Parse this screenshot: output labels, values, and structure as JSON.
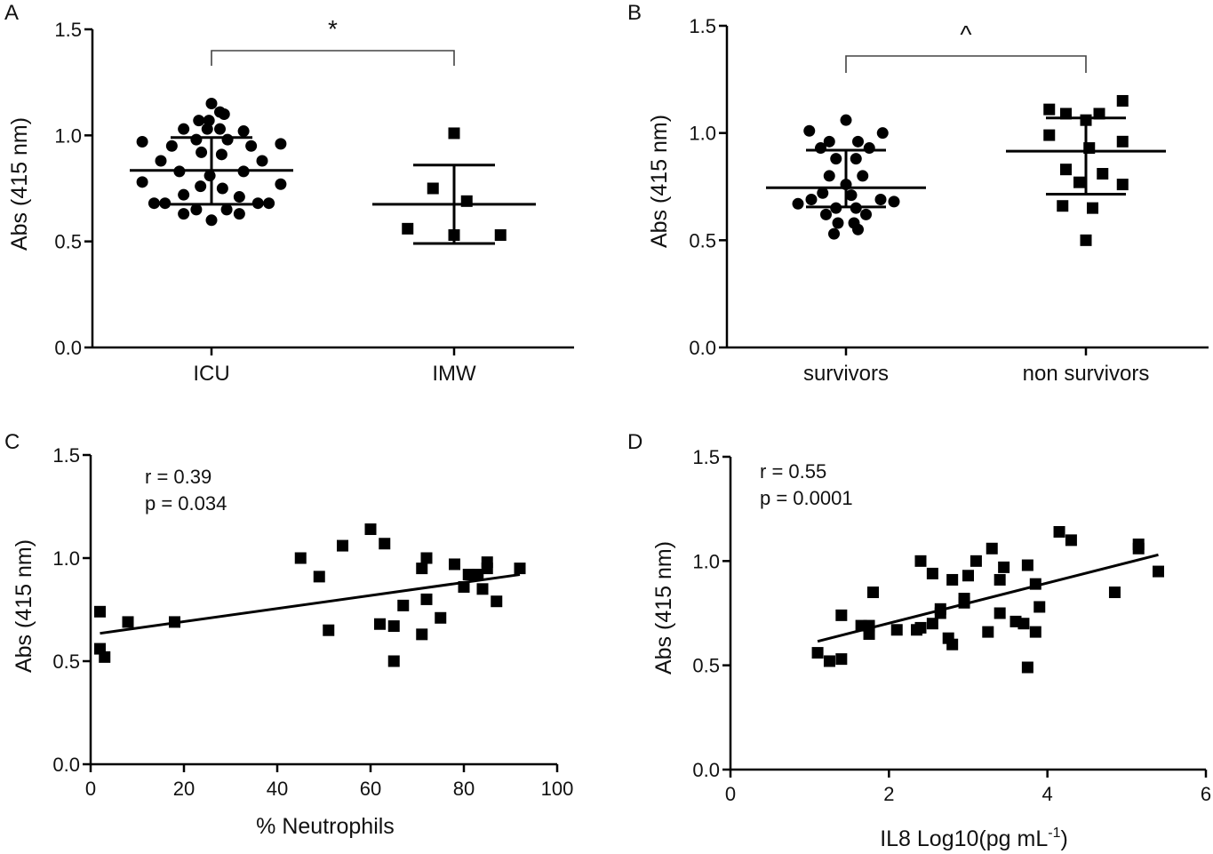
{
  "chart_data": [
    {
      "panel": "A",
      "type": "scatter",
      "ylabel": "Abs (415 nm)",
      "ylim": [
        0,
        1.5
      ],
      "yticks": [
        "0.0",
        "0.5",
        "1.0",
        "1.5"
      ],
      "categories": [
        "ICU",
        "IMW"
      ],
      "significance": {
        "symbol": "*",
        "between": [
          "ICU",
          "IMW"
        ]
      },
      "series": [
        {
          "name": "ICU",
          "marker": "circle",
          "mean": 0.835,
          "sd_low": 0.675,
          "sd_high": 0.99,
          "points": [
            {
              "v": 1.15,
              "o": 0.0
            },
            {
              "v": 1.11,
              "o": 0.1
            },
            {
              "v": 1.1,
              "o": 0.15
            },
            {
              "v": 1.07,
              "o": -0.15
            },
            {
              "v": 1.07,
              "o": -0.03
            },
            {
              "v": 1.03,
              "o": -0.33
            },
            {
              "v": 1.03,
              "o": -0.05
            },
            {
              "v": 1.03,
              "o": 0.1
            },
            {
              "v": 1.02,
              "o": 0.38
            },
            {
              "v": 0.98,
              "o": -0.18
            },
            {
              "v": 0.98,
              "o": 0.19
            },
            {
              "v": 0.97,
              "o": -0.82
            },
            {
              "v": 0.95,
              "o": -0.47
            },
            {
              "v": 0.95,
              "o": 0.47
            },
            {
              "v": 0.96,
              "o": 0.82
            },
            {
              "v": 0.92,
              "o": -0.12
            },
            {
              "v": 0.91,
              "o": 0.12
            },
            {
              "v": 0.88,
              "o": -0.6
            },
            {
              "v": 0.88,
              "o": 0.6
            },
            {
              "v": 0.83,
              "o": -0.38
            },
            {
              "v": 0.83,
              "o": 0.38
            },
            {
              "v": 0.81,
              "o": -0.02
            },
            {
              "v": 0.78,
              "o": -0.82
            },
            {
              "v": 0.77,
              "o": 0.82
            },
            {
              "v": 0.76,
              "o": -0.13
            },
            {
              "v": 0.75,
              "o": 0.13
            },
            {
              "v": 0.72,
              "o": -0.33
            },
            {
              "v": 0.71,
              "o": 0.33
            },
            {
              "v": 0.68,
              "o": -0.68
            },
            {
              "v": 0.68,
              "o": -0.55
            },
            {
              "v": 0.68,
              "o": 0.55
            },
            {
              "v": 0.68,
              "o": 0.68
            },
            {
              "v": 0.65,
              "o": -0.18
            },
            {
              "v": 0.65,
              "o": 0.18
            },
            {
              "v": 0.63,
              "o": -0.33
            },
            {
              "v": 0.63,
              "o": 0.33
            },
            {
              "v": 0.6,
              "o": 0.0
            }
          ]
        },
        {
          "name": "IMW",
          "marker": "square",
          "mean": 0.675,
          "sd_low": 0.49,
          "sd_high": 0.86,
          "points": [
            {
              "v": 1.01,
              "o": 0.0
            },
            {
              "v": 0.75,
              "o": -0.25
            },
            {
              "v": 0.69,
              "o": 0.15
            },
            {
              "v": 0.56,
              "o": -0.55
            },
            {
              "v": 0.53,
              "o": 0.0
            },
            {
              "v": 0.53,
              "o": 0.55
            }
          ]
        }
      ]
    },
    {
      "panel": "B",
      "type": "scatter",
      "ylabel": "Abs (415 nm)",
      "ylim": [
        0,
        1.5
      ],
      "yticks": [
        "0.0",
        "0.5",
        "1.0",
        "1.5"
      ],
      "categories": [
        "survivors",
        "non survivors"
      ],
      "significance": {
        "symbol": "^",
        "between": [
          "survivors",
          "non survivors"
        ]
      },
      "series": [
        {
          "name": "survivors",
          "marker": "circle",
          "mean": 0.745,
          "sd_low": 0.655,
          "sd_high": 0.92,
          "points": [
            {
              "v": 1.06,
              "o": 0.0
            },
            {
              "v": 1.01,
              "o": -0.55
            },
            {
              "v": 1.0,
              "o": 0.55
            },
            {
              "v": 0.96,
              "o": -0.25
            },
            {
              "v": 0.96,
              "o": 0.18
            },
            {
              "v": 0.93,
              "o": -0.38
            },
            {
              "v": 0.93,
              "o": 0.35
            },
            {
              "v": 0.88,
              "o": -0.15
            },
            {
              "v": 0.88,
              "o": 0.15
            },
            {
              "v": 0.8,
              "o": -0.25
            },
            {
              "v": 0.8,
              "o": 0.25
            },
            {
              "v": 0.76,
              "o": 0.0
            },
            {
              "v": 0.72,
              "o": -0.35
            },
            {
              "v": 0.71,
              "o": 0.08
            },
            {
              "v": 0.69,
              "o": -0.52
            },
            {
              "v": 0.69,
              "o": 0.52
            },
            {
              "v": 0.67,
              "o": -0.72
            },
            {
              "v": 0.68,
              "o": 0.72
            },
            {
              "v": 0.65,
              "o": -0.15
            },
            {
              "v": 0.65,
              "o": 0.15
            },
            {
              "v": 0.62,
              "o": -0.3
            },
            {
              "v": 0.62,
              "o": 0.3
            },
            {
              "v": 0.58,
              "o": -0.12
            },
            {
              "v": 0.58,
              "o": 0.12
            },
            {
              "v": 0.53,
              "o": -0.18
            },
            {
              "v": 0.55,
              "o": 0.18
            }
          ]
        },
        {
          "name": "non survivors",
          "marker": "square",
          "mean": 0.915,
          "sd_low": 0.715,
          "sd_high": 1.07,
          "points": [
            {
              "v": 1.15,
              "o": 0.55
            },
            {
              "v": 1.11,
              "o": -0.55
            },
            {
              "v": 1.09,
              "o": -0.3
            },
            {
              "v": 1.09,
              "o": 0.2
            },
            {
              "v": 1.06,
              "o": 0.0
            },
            {
              "v": 0.99,
              "o": -0.55
            },
            {
              "v": 0.96,
              "o": 0.55
            },
            {
              "v": 0.93,
              "o": 0.05
            },
            {
              "v": 0.83,
              "o": -0.3
            },
            {
              "v": 0.81,
              "o": 0.25
            },
            {
              "v": 0.77,
              "o": -0.1
            },
            {
              "v": 0.76,
              "o": 0.55
            },
            {
              "v": 0.66,
              "o": -0.35
            },
            {
              "v": 0.65,
              "o": 0.1
            },
            {
              "v": 0.5,
              "o": 0.0
            }
          ]
        }
      ]
    },
    {
      "panel": "C",
      "type": "scatter",
      "xlabel": "% Neutrophils",
      "ylabel": "Abs (415 nm)",
      "xlim": [
        0,
        100
      ],
      "ylim": [
        0,
        1.5
      ],
      "xticks": [
        "0",
        "20",
        "40",
        "60",
        "80",
        "100"
      ],
      "yticks": [
        "0.0",
        "0.5",
        "1.0",
        "1.5"
      ],
      "annotations": [
        "r = 0.39",
        "p = 0.034"
      ],
      "fit": {
        "x": [
          2,
          92
        ],
        "y": [
          0.635,
          0.92
        ]
      },
      "points": [
        [
          2,
          0.74
        ],
        [
          2,
          0.56
        ],
        [
          3,
          0.52
        ],
        [
          8,
          0.69
        ],
        [
          18,
          0.69
        ],
        [
          45,
          1.0
        ],
        [
          49,
          0.91
        ],
        [
          51,
          0.65
        ],
        [
          54,
          1.06
        ],
        [
          60,
          1.14
        ],
        [
          62,
          0.68
        ],
        [
          63,
          1.07
        ],
        [
          65,
          0.67
        ],
        [
          65,
          0.5
        ],
        [
          67,
          0.77
        ],
        [
          71,
          0.63
        ],
        [
          71,
          0.95
        ],
        [
          72,
          1.0
        ],
        [
          72,
          0.8
        ],
        [
          75,
          0.71
        ],
        [
          78,
          0.97
        ],
        [
          80,
          0.86
        ],
        [
          81,
          0.92
        ],
        [
          83,
          0.92
        ],
        [
          84,
          0.85
        ],
        [
          85,
          0.98
        ],
        [
          85,
          0.95
        ],
        [
          87,
          0.79
        ],
        [
          92,
          0.95
        ]
      ]
    },
    {
      "panel": "D",
      "type": "scatter",
      "xlabel_main": "IL8 Log10(pg mL",
      "xlabel_sup": "-1",
      "xlabel_end": ")",
      "ylabel": "Abs (415 nm)",
      "xlim": [
        0,
        6
      ],
      "ylim": [
        0,
        1.5
      ],
      "xticks": [
        "0",
        "2",
        "4",
        "6"
      ],
      "yticks": [
        "0.0",
        "0.5",
        "1.0",
        "1.5"
      ],
      "annotations": [
        "r = 0.55",
        "p = 0.0001"
      ],
      "fit": {
        "x": [
          1.1,
          5.4
        ],
        "y": [
          0.615,
          1.03
        ]
      },
      "points": [
        [
          1.1,
          0.56
        ],
        [
          1.25,
          0.52
        ],
        [
          1.4,
          0.53
        ],
        [
          1.4,
          0.74
        ],
        [
          1.65,
          0.69
        ],
        [
          1.75,
          0.65
        ],
        [
          1.75,
          0.69
        ],
        [
          1.8,
          0.85
        ],
        [
          2.1,
          0.67
        ],
        [
          2.35,
          0.67
        ],
        [
          2.4,
          1.0
        ],
        [
          2.4,
          0.68
        ],
        [
          2.55,
          0.7
        ],
        [
          2.55,
          0.94
        ],
        [
          2.65,
          0.75
        ],
        [
          2.65,
          0.77
        ],
        [
          2.75,
          0.63
        ],
        [
          2.8,
          0.6
        ],
        [
          2.8,
          0.91
        ],
        [
          2.95,
          0.82
        ],
        [
          2.95,
          0.8
        ],
        [
          3.0,
          0.93
        ],
        [
          3.1,
          1.0
        ],
        [
          3.25,
          0.66
        ],
        [
          3.3,
          1.06
        ],
        [
          3.4,
          0.91
        ],
        [
          3.4,
          0.75
        ],
        [
          3.45,
          0.97
        ],
        [
          3.6,
          0.71
        ],
        [
          3.7,
          0.7
        ],
        [
          3.75,
          0.98
        ],
        [
          3.75,
          0.49
        ],
        [
          3.85,
          0.66
        ],
        [
          3.85,
          0.89
        ],
        [
          3.9,
          0.78
        ],
        [
          4.15,
          1.14
        ],
        [
          4.3,
          1.1
        ],
        [
          4.85,
          0.85
        ],
        [
          5.15,
          1.08
        ],
        [
          5.15,
          1.06
        ],
        [
          5.4,
          0.95
        ]
      ]
    }
  ]
}
